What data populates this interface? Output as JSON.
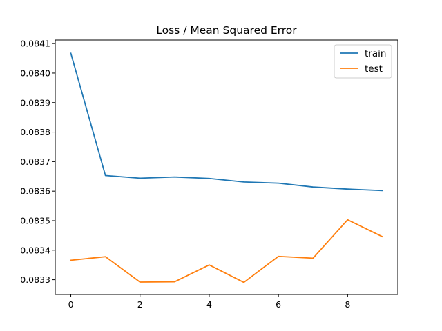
{
  "chart_data": {
    "type": "line",
    "title": "Loss / Mean Squared Error",
    "xlabel": "",
    "ylabel": "",
    "x": [
      0,
      1,
      2,
      3,
      4,
      5,
      6,
      7,
      8,
      9
    ],
    "xlim": [
      -0.45,
      9.45
    ],
    "ylim": [
      0.08325,
      0.084112
    ],
    "xticks": [
      0,
      2,
      4,
      6,
      8
    ],
    "yticks": [
      0.0833,
      0.0834,
      0.0835,
      0.0836,
      0.0837,
      0.0838,
      0.0839,
      0.084,
      0.0841
    ],
    "ytick_labels": [
      "0.0833",
      "0.0834",
      "0.0835",
      "0.0836",
      "0.0837",
      "0.0838",
      "0.0839",
      "0.0840",
      "0.0841"
    ],
    "grid": false,
    "legend_position": "top-right",
    "series": [
      {
        "name": "train",
        "color": "#1f77b4",
        "values": [
          0.084067,
          0.083653,
          0.083644,
          0.083648,
          0.083643,
          0.083631,
          0.083627,
          0.083614,
          0.083607,
          0.083602
        ]
      },
      {
        "name": "test",
        "color": "#ff7f0e",
        "values": [
          0.083366,
          0.083378,
          0.083292,
          0.083293,
          0.08335,
          0.083291,
          0.083379,
          0.083373,
          0.083503,
          0.083446
        ]
      }
    ]
  }
}
